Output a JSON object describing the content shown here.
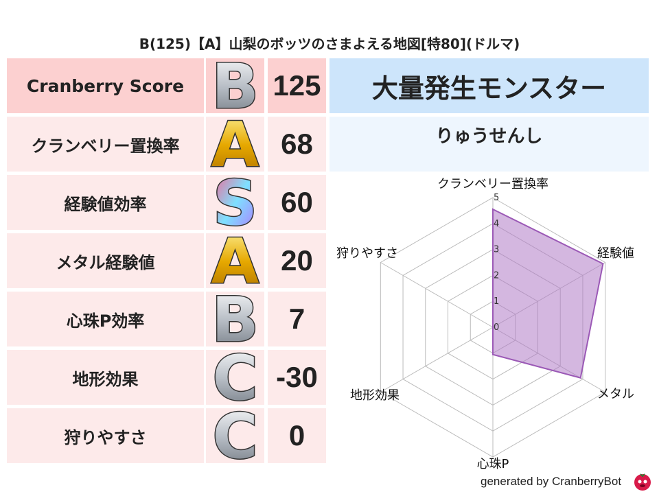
{
  "title": "B(125)【A】山梨のボッツのさまよえる地図[特80](ドルマ)",
  "score": {
    "label": "Cranberry Score",
    "grade": "B",
    "value": "125"
  },
  "rows": [
    {
      "label": "クランベリー置換率",
      "grade": "A",
      "value": "68"
    },
    {
      "label": "経験値効率",
      "grade": "S",
      "value": "60"
    },
    {
      "label": "メタル経験値",
      "grade": "A",
      "value": "20"
    },
    {
      "label": "心珠P効率",
      "grade": "B",
      "value": "7"
    },
    {
      "label": "地形効果",
      "grade": "C",
      "value": "-30"
    },
    {
      "label": "狩りやすさ",
      "grade": "C",
      "value": "0"
    }
  ],
  "monster": {
    "header": "大量発生モンスター",
    "name": "りゅうせんし"
  },
  "colors": {
    "fill": "#b07cc6",
    "stroke": "#9b59b6",
    "grid": "#bbbbbb"
  },
  "chart_data": {
    "type": "radar",
    "axes": [
      "クランベリー置換率",
      "経験値",
      "メタル",
      "心珠P",
      "地形効果",
      "狩りやすさ"
    ],
    "values": [
      4.55,
      4.9,
      3.9,
      1.05,
      0,
      0
    ],
    "range": [
      0,
      5
    ],
    "ticks": [
      "0",
      "1",
      "2",
      "3",
      "4",
      "5"
    ]
  },
  "footer": "generated by CranberryBot"
}
